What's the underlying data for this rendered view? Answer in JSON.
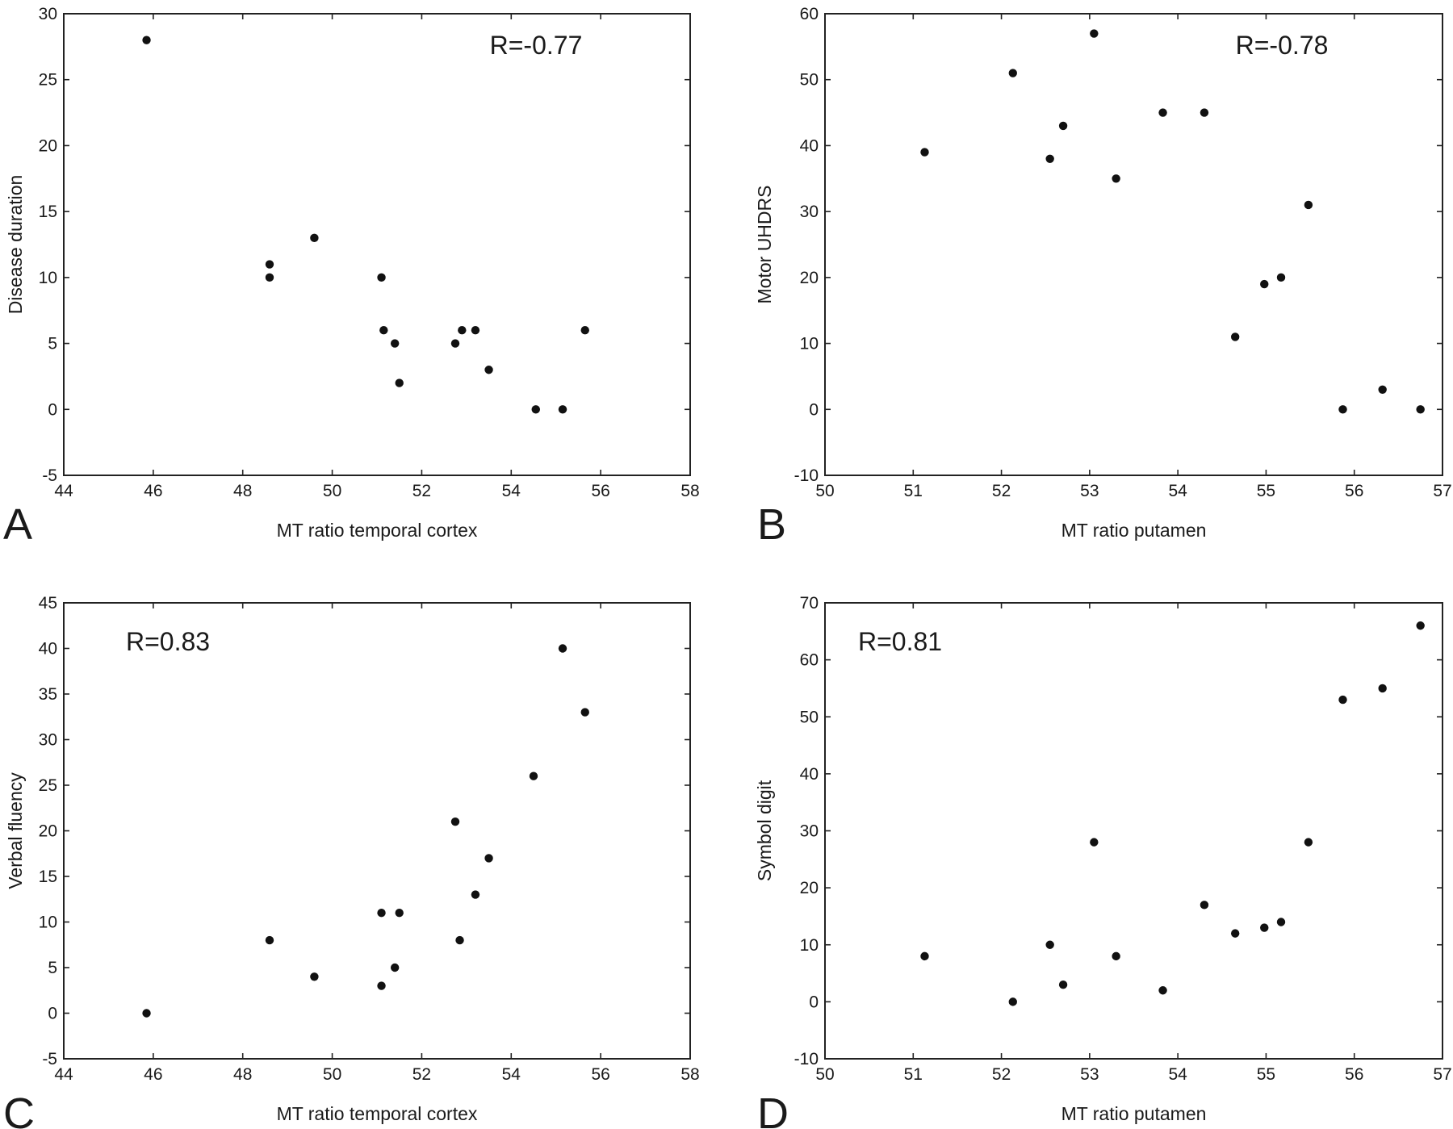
{
  "chart_data": [
    {
      "type": "scatter",
      "panel": "A",
      "annotation": "R=-0.77",
      "xlabel": "MT ratio temporal cortex",
      "ylabel": "Disease duration",
      "xlim": [
        44,
        58
      ],
      "ylim": [
        -5,
        30
      ],
      "xticks": [
        44,
        46,
        48,
        50,
        52,
        54,
        56,
        58
      ],
      "yticks": [
        -5,
        0,
        5,
        10,
        15,
        20,
        25,
        30
      ],
      "grid": false,
      "points": [
        {
          "x": 45.85,
          "y": 28
        },
        {
          "x": 48.6,
          "y": 11
        },
        {
          "x": 48.6,
          "y": 10
        },
        {
          "x": 49.6,
          "y": 13
        },
        {
          "x": 51.1,
          "y": 10
        },
        {
          "x": 51.15,
          "y": 6
        },
        {
          "x": 51.4,
          "y": 5
        },
        {
          "x": 51.5,
          "y": 2
        },
        {
          "x": 52.75,
          "y": 5
        },
        {
          "x": 52.9,
          "y": 6
        },
        {
          "x": 53.2,
          "y": 6
        },
        {
          "x": 53.5,
          "y": 3
        },
        {
          "x": 54.55,
          "y": 0
        },
        {
          "x": 55.15,
          "y": 0
        },
        {
          "x": 55.65,
          "y": 6
        }
      ]
    },
    {
      "type": "scatter",
      "panel": "B",
      "annotation": "R=-0.78",
      "xlabel": "MT ratio putamen",
      "ylabel": "Motor UHDRS",
      "xlim": [
        50,
        57
      ],
      "ylim": [
        -10,
        60
      ],
      "xticks": [
        50,
        51,
        52,
        53,
        54,
        55,
        56,
        57
      ],
      "yticks": [
        -10,
        0,
        10,
        20,
        30,
        40,
        50,
        60
      ],
      "grid": false,
      "points": [
        {
          "x": 51.13,
          "y": 39
        },
        {
          "x": 52.13,
          "y": 51
        },
        {
          "x": 52.55,
          "y": 38
        },
        {
          "x": 52.7,
          "y": 43
        },
        {
          "x": 53.05,
          "y": 57
        },
        {
          "x": 53.3,
          "y": 35
        },
        {
          "x": 53.83,
          "y": 45
        },
        {
          "x": 54.3,
          "y": 45
        },
        {
          "x": 54.65,
          "y": 11
        },
        {
          "x": 54.98,
          "y": 19
        },
        {
          "x": 55.17,
          "y": 20
        },
        {
          "x": 55.48,
          "y": 31
        },
        {
          "x": 55.87,
          "y": 0
        },
        {
          "x": 56.32,
          "y": 3
        },
        {
          "x": 56.75,
          "y": 0
        }
      ]
    },
    {
      "type": "scatter",
      "panel": "C",
      "annotation": "R=0.83",
      "xlabel": "MT ratio temporal cortex",
      "ylabel": "Verbal fluency",
      "xlim": [
        44,
        58
      ],
      "ylim": [
        -5,
        45
      ],
      "xticks": [
        44,
        46,
        48,
        50,
        52,
        54,
        56,
        58
      ],
      "yticks": [
        -5,
        0,
        5,
        10,
        15,
        20,
        25,
        30,
        35,
        40,
        45
      ],
      "grid": false,
      "points": [
        {
          "x": 45.85,
          "y": 0
        },
        {
          "x": 48.6,
          "y": 8
        },
        {
          "x": 49.6,
          "y": 4
        },
        {
          "x": 51.1,
          "y": 11
        },
        {
          "x": 51.1,
          "y": 3
        },
        {
          "x": 51.4,
          "y": 5
        },
        {
          "x": 51.5,
          "y": 11
        },
        {
          "x": 52.75,
          "y": 21
        },
        {
          "x": 52.85,
          "y": 8
        },
        {
          "x": 53.2,
          "y": 13
        },
        {
          "x": 53.5,
          "y": 17
        },
        {
          "x": 54.5,
          "y": 26
        },
        {
          "x": 55.15,
          "y": 40
        },
        {
          "x": 55.65,
          "y": 33
        }
      ]
    },
    {
      "type": "scatter",
      "panel": "D",
      "annotation": "R=0.81",
      "xlabel": "MT ratio putamen",
      "ylabel": "Symbol digit",
      "xlim": [
        50,
        57
      ],
      "ylim": [
        -10,
        70
      ],
      "xticks": [
        50,
        51,
        52,
        53,
        54,
        55,
        56,
        57
      ],
      "yticks": [
        -10,
        0,
        10,
        20,
        30,
        40,
        50,
        60,
        70
      ],
      "grid": false,
      "points": [
        {
          "x": 51.13,
          "y": 8
        },
        {
          "x": 52.13,
          "y": 0
        },
        {
          "x": 52.55,
          "y": 10
        },
        {
          "x": 52.7,
          "y": 3
        },
        {
          "x": 53.05,
          "y": 28
        },
        {
          "x": 53.3,
          "y": 8
        },
        {
          "x": 53.83,
          "y": 2
        },
        {
          "x": 54.3,
          "y": 17
        },
        {
          "x": 54.65,
          "y": 12
        },
        {
          "x": 54.98,
          "y": 13
        },
        {
          "x": 55.17,
          "y": 14
        },
        {
          "x": 55.48,
          "y": 28
        },
        {
          "x": 55.87,
          "y": 53
        },
        {
          "x": 56.32,
          "y": 55
        },
        {
          "x": 56.75,
          "y": 66
        }
      ]
    }
  ]
}
